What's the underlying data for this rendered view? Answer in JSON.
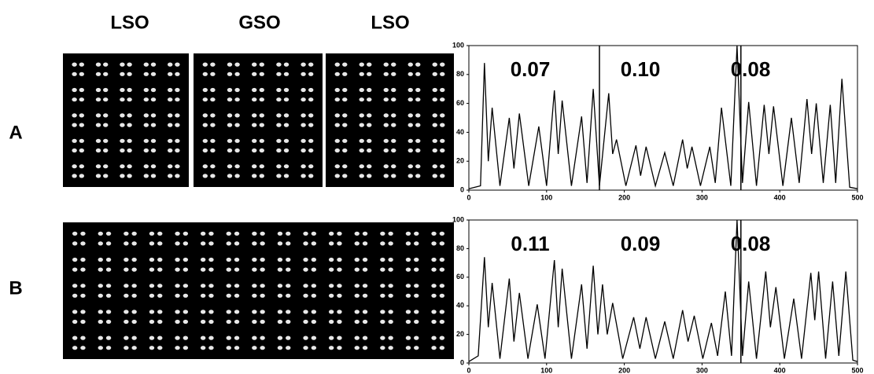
{
  "column_labels": [
    "LSO",
    "GSO",
    "LSO"
  ],
  "row_labels": [
    "A",
    "B"
  ],
  "chart_data": [
    {
      "type": "line",
      "color": "#000000",
      "xlim": [
        0,
        500
      ],
      "ylim": [
        0,
        100
      ],
      "xticks": [
        0,
        100,
        200,
        300,
        400,
        500
      ],
      "yticks": [
        0,
        20,
        40,
        60,
        80,
        100
      ],
      "annotations": [
        "0.07",
        "0.10",
        "0.08"
      ],
      "dividers": [
        168,
        350
      ],
      "x": [
        0,
        15,
        20,
        25,
        30,
        40,
        52,
        58,
        65,
        77,
        90,
        100,
        110,
        115,
        120,
        132,
        145,
        152,
        160,
        168,
        180,
        185,
        190,
        202,
        215,
        221,
        228,
        240,
        252,
        263,
        275,
        281,
        287,
        298,
        310,
        317,
        325,
        337,
        345,
        352,
        360,
        370,
        380,
        386,
        392,
        404,
        415,
        425,
        435,
        441,
        447,
        456,
        465,
        472,
        480,
        490,
        500
      ],
      "values": [
        1,
        3,
        88,
        20,
        57,
        3,
        50,
        15,
        53,
        3,
        44,
        3,
        69,
        25,
        62,
        3,
        51,
        5,
        70,
        3,
        67,
        25,
        35,
        3,
        31,
        10,
        30,
        3,
        26,
        3,
        35,
        15,
        30,
        3,
        30,
        5,
        57,
        3,
        100,
        5,
        61,
        3,
        59,
        25,
        58,
        3,
        50,
        5,
        63,
        25,
        60,
        5,
        59,
        5,
        77,
        2,
        1
      ]
    },
    {
      "type": "line",
      "color": "#000000",
      "xlim": [
        0,
        500
      ],
      "ylim": [
        0,
        100
      ],
      "xticks": [
        0,
        100,
        200,
        300,
        400,
        500
      ],
      "yticks": [
        0,
        20,
        40,
        60,
        80,
        100
      ],
      "annotations": [
        "0.11",
        "0.09",
        "0.08"
      ],
      "dividers": [
        350
      ],
      "x": [
        0,
        12,
        20,
        25,
        30,
        40,
        52,
        58,
        65,
        76,
        88,
        98,
        110,
        115,
        120,
        132,
        145,
        152,
        160,
        166,
        172,
        178,
        185,
        198,
        212,
        220,
        228,
        240,
        252,
        263,
        275,
        282,
        290,
        301,
        312,
        320,
        330,
        338,
        345,
        352,
        360,
        370,
        382,
        388,
        395,
        406,
        418,
        428,
        440,
        445,
        450,
        459,
        468,
        476,
        485,
        494,
        500
      ],
      "values": [
        1,
        5,
        74,
        25,
        56,
        3,
        59,
        15,
        49,
        3,
        41,
        3,
        72,
        25,
        66,
        3,
        55,
        10,
        68,
        20,
        55,
        20,
        42,
        3,
        32,
        10,
        32,
        3,
        29,
        3,
        37,
        15,
        33,
        3,
        28,
        5,
        50,
        5,
        100,
        5,
        57,
        3,
        64,
        25,
        53,
        3,
        45,
        3,
        63,
        30,
        64,
        3,
        57,
        5,
        64,
        2,
        1
      ]
    }
  ]
}
